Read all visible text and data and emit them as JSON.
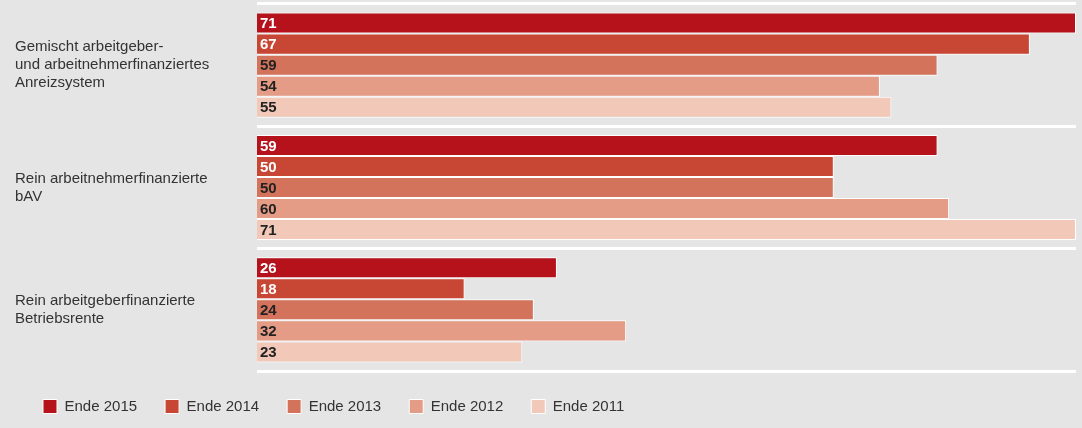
{
  "chart_data": {
    "type": "bar",
    "orientation": "horizontal",
    "categories": [
      "Gemischt arbeitgeber-\nund arbeitnehmerfinanziertes\nAnreizsystem",
      "Rein arbeitnehmerfinanzierte\nbAV",
      "Rein arbeitgeberfinanzierte\nBetriebsrente"
    ],
    "series": [
      {
        "name": "Ende 2015",
        "color": "#b5121b",
        "values": [
          71,
          59,
          26
        ]
      },
      {
        "name": "Ende 2014",
        "color": "#c84634",
        "values": [
          67,
          50,
          18
        ]
      },
      {
        "name": "Ende 2013",
        "color": "#d4735c",
        "values": [
          59,
          50,
          24
        ]
      },
      {
        "name": "Ende 2012",
        "color": "#e49c86",
        "values": [
          54,
          60,
          32
        ]
      },
      {
        "name": "Ende 2011",
        "color": "#f2c9b9",
        "values": [
          55,
          71,
          23
        ]
      }
    ],
    "data_labels": true,
    "grid": "y",
    "legend": "bottom left",
    "tick_labels": "y"
  }
}
